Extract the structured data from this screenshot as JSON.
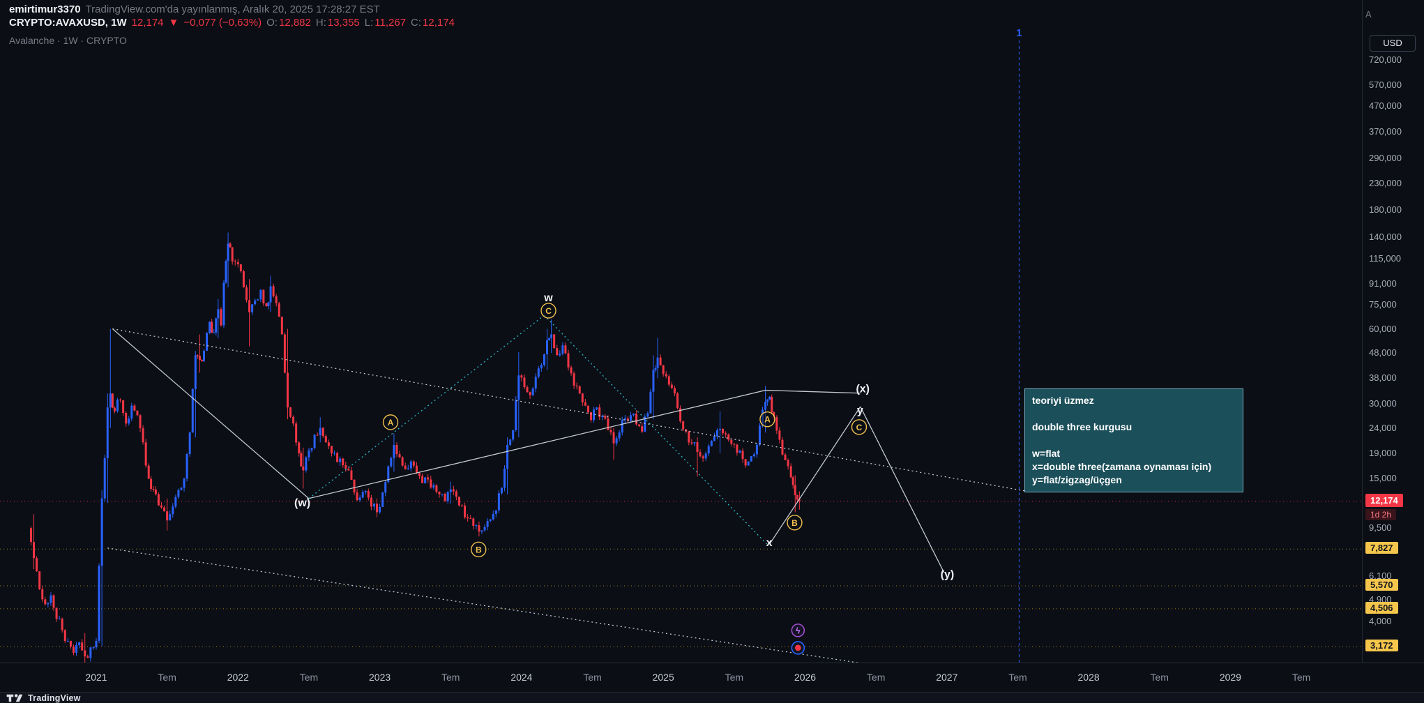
{
  "header": {
    "author": "emirtimur3370",
    "published": "TradingView.com'da yayınlanmış, Aralık 20, 2025 17:28:27 EST",
    "symbol_interval": "CRYPTO:AVAXUSD, 1W",
    "last_price": "12,174",
    "direction": "▼",
    "change": "−0,077 (−0,63%)",
    "o_label": "O:",
    "o_value": "12,882",
    "h_label": "H:",
    "h_value": "13,355",
    "l_label": "L:",
    "l_value": "11,267",
    "c_label": "C:",
    "c_value": "12,174"
  },
  "watermark": "Avalanche · 1W · CRYPTO",
  "price_axis": {
    "currency_button": "USD",
    "auto_button": "A",
    "ticks": [
      {
        "label": "720,000",
        "value": 720
      },
      {
        "label": "570,000",
        "value": 570
      },
      {
        "label": "470,000",
        "value": 470
      },
      {
        "label": "370,000",
        "value": 370
      },
      {
        "label": "290,000",
        "value": 290
      },
      {
        "label": "230,000",
        "value": 230
      },
      {
        "label": "180,000",
        "value": 180
      },
      {
        "label": "140,000",
        "value": 140
      },
      {
        "label": "115,000",
        "value": 115
      },
      {
        "label": "91,000",
        "value": 91
      },
      {
        "label": "75,000",
        "value": 75
      },
      {
        "label": "60,000",
        "value": 60
      },
      {
        "label": "48,000",
        "value": 48
      },
      {
        "label": "38,000",
        "value": 38
      },
      {
        "label": "30,000",
        "value": 30
      },
      {
        "label": "24,000",
        "value": 24
      },
      {
        "label": "19,000",
        "value": 19
      },
      {
        "label": "15,000",
        "value": 15
      },
      {
        "label": "9,500",
        "value": 9.5
      },
      {
        "label": "6,100",
        "value": 6.1
      },
      {
        "label": "4,900",
        "value": 4.9
      },
      {
        "label": "4,000",
        "value": 4
      }
    ],
    "current": {
      "label": "12,174",
      "value": 12.174,
      "countdown": "1d 2h"
    },
    "alerts": [
      {
        "label": "7,827",
        "value": 7.827
      },
      {
        "label": "5,570",
        "value": 5.57
      },
      {
        "label": "4,506",
        "value": 4.506
      },
      {
        "label": "3,172",
        "value": 3.172
      }
    ]
  },
  "time_axis": [
    {
      "label": "2021",
      "t": 2021,
      "type": "year"
    },
    {
      "label": "Tem",
      "t": 2021.5,
      "type": "month"
    },
    {
      "label": "2022",
      "t": 2022,
      "type": "year"
    },
    {
      "label": "Tem",
      "t": 2022.5,
      "type": "month"
    },
    {
      "label": "2023",
      "t": 2023,
      "type": "year"
    },
    {
      "label": "Tem",
      "t": 2023.5,
      "type": "month"
    },
    {
      "label": "2024",
      "t": 2024,
      "type": "year"
    },
    {
      "label": "Tem",
      "t": 2024.5,
      "type": "month"
    },
    {
      "label": "2025",
      "t": 2025,
      "type": "year"
    },
    {
      "label": "Tem",
      "t": 2025.5,
      "type": "month"
    },
    {
      "label": "2026",
      "t": 2026,
      "type": "year"
    },
    {
      "label": "Tem",
      "t": 2026.5,
      "type": "month"
    },
    {
      "label": "2027",
      "t": 2027,
      "type": "year"
    },
    {
      "label": "Tem",
      "t": 2027.5,
      "type": "month"
    },
    {
      "label": "2028",
      "t": 2028,
      "type": "year"
    },
    {
      "label": "Tem",
      "t": 2028.5,
      "type": "month"
    },
    {
      "label": "2029",
      "t": 2029,
      "type": "year"
    },
    {
      "label": "Tem",
      "t": 2029.5,
      "type": "month"
    }
  ],
  "chart_data": {
    "type": "candlestick",
    "symbol": "CRYPTO:AVAXUSD",
    "title": "Avalanche",
    "interval": "1W",
    "unit": "USD",
    "scale": "log",
    "x_range": [
      2020.5,
      2029.6
    ],
    "visible_price_range": [
      2.3,
      900
    ],
    "up_color": "#2962ff",
    "down_color": "#f23645",
    "last_bar": {
      "open": 12.882,
      "high": 13.355,
      "low": 11.267,
      "close": 12.174,
      "change": -0.077,
      "change_pct": -0.63
    },
    "weekly_close_anchors": [
      [
        2020.52,
        9.5
      ],
      [
        2020.56,
        7.2,
        10.8,
        6.5
      ],
      [
        2020.6,
        5.4
      ],
      [
        2020.64,
        4.7
      ],
      [
        2020.68,
        5.1
      ],
      [
        2020.72,
        4.1
      ],
      [
        2020.76,
        3.7
      ],
      [
        2020.8,
        3.35
      ],
      [
        2020.84,
        3.0
      ],
      [
        2020.88,
        3.3
      ],
      [
        2020.92,
        2.9,
        3.6,
        2.55
      ],
      [
        2020.96,
        3.15
      ],
      [
        2021.0,
        3.35
      ],
      [
        2021.04,
        12.5,
        13.5,
        3.2
      ],
      [
        2021.08,
        29,
        33,
        12
      ],
      [
        2021.1,
        33,
        59.9,
        24
      ],
      [
        2021.13,
        28
      ],
      [
        2021.17,
        31
      ],
      [
        2021.21,
        25
      ],
      [
        2021.25,
        29.5
      ],
      [
        2021.29,
        27
      ],
      [
        2021.33,
        21
      ],
      [
        2021.37,
        15
      ],
      [
        2021.42,
        13
      ],
      [
        2021.46,
        11.5
      ],
      [
        2021.5,
        10.2,
        12.5,
        9.3
      ],
      [
        2021.54,
        11.6
      ],
      [
        2021.58,
        13.5
      ],
      [
        2021.62,
        15
      ],
      [
        2021.66,
        23
      ],
      [
        2021.7,
        47,
        49,
        22
      ],
      [
        2021.73,
        45,
        57,
        40
      ],
      [
        2021.76,
        49
      ],
      [
        2021.8,
        64
      ],
      [
        2021.83,
        58
      ],
      [
        2021.86,
        72,
        79,
        55
      ],
      [
        2021.88,
        62
      ],
      [
        2021.9,
        92
      ],
      [
        2021.93,
        132,
        146.2,
        88
      ],
      [
        2021.96,
        112
      ],
      [
        2022.0,
        109
      ],
      [
        2022.04,
        88
      ],
      [
        2022.08,
        70,
        95,
        51
      ],
      [
        2022.12,
        78
      ],
      [
        2022.16,
        86
      ],
      [
        2022.2,
        74
      ],
      [
        2022.23,
        89,
        98,
        70
      ],
      [
        2022.27,
        76
      ],
      [
        2022.31,
        57
      ],
      [
        2022.35,
        29,
        60,
        26
      ],
      [
        2022.39,
        25
      ],
      [
        2022.43,
        19
      ],
      [
        2022.46,
        16.2,
        20,
        13.7
      ],
      [
        2022.5,
        19.5
      ],
      [
        2022.54,
        22.5
      ],
      [
        2022.58,
        24,
        26.5,
        21
      ],
      [
        2022.62,
        21
      ],
      [
        2022.66,
        19
      ],
      [
        2022.7,
        17.5
      ],
      [
        2022.74,
        17
      ],
      [
        2022.78,
        16.2
      ],
      [
        2022.82,
        13.2
      ],
      [
        2022.86,
        12.6
      ],
      [
        2022.9,
        13.4
      ],
      [
        2022.94,
        11.6
      ],
      [
        2022.98,
        11.0,
        12.5,
        10.5
      ],
      [
        2023.02,
        13.2
      ],
      [
        2023.06,
        16.8
      ],
      [
        2023.1,
        20.5,
        22.8,
        16
      ],
      [
        2023.14,
        18.3
      ],
      [
        2023.18,
        16.4
      ],
      [
        2023.22,
        17.6
      ],
      [
        2023.26,
        15.8
      ],
      [
        2023.3,
        14.4
      ],
      [
        2023.34,
        14.9
      ],
      [
        2023.38,
        14.1
      ],
      [
        2023.42,
        13.0
      ],
      [
        2023.46,
        12.2
      ],
      [
        2023.5,
        13.6,
        14.6,
        11.9
      ],
      [
        2023.54,
        12.7
      ],
      [
        2023.58,
        11.7
      ],
      [
        2023.62,
        10.4
      ],
      [
        2023.66,
        9.7
      ],
      [
        2023.7,
        9.2,
        10.1,
        8.8
      ],
      [
        2023.74,
        9.6
      ],
      [
        2023.78,
        10.3
      ],
      [
        2023.82,
        11.2
      ],
      [
        2023.86,
        13.8
      ],
      [
        2023.9,
        20.5,
        22,
        13
      ],
      [
        2023.94,
        23.5
      ],
      [
        2023.98,
        39,
        48.3,
        22
      ],
      [
        2024.02,
        35
      ],
      [
        2024.06,
        32.5
      ],
      [
        2024.1,
        38.5
      ],
      [
        2024.14,
        43
      ],
      [
        2024.18,
        54,
        60,
        41
      ],
      [
        2024.21,
        57,
        65.4,
        48
      ],
      [
        2024.25,
        47
      ],
      [
        2024.29,
        51.5
      ],
      [
        2024.33,
        42
      ],
      [
        2024.37,
        35.5
      ],
      [
        2024.41,
        33
      ],
      [
        2024.45,
        29.5
      ],
      [
        2024.49,
        25.8
      ],
      [
        2024.53,
        29
      ],
      [
        2024.57,
        26.8
      ],
      [
        2024.61,
        23.5
      ],
      [
        2024.65,
        20.8,
        24,
        17.9
      ],
      [
        2024.69,
        23
      ],
      [
        2024.73,
        26.2
      ],
      [
        2024.77,
        27
      ],
      [
        2024.81,
        24.8
      ],
      [
        2024.85,
        23.2
      ],
      [
        2024.89,
        27.5
      ],
      [
        2024.93,
        41,
        47,
        26
      ],
      [
        2024.96,
        46,
        55.2,
        38
      ],
      [
        2025.0,
        39.5
      ],
      [
        2025.04,
        35.8
      ],
      [
        2025.08,
        33
      ],
      [
        2025.12,
        25.5
      ],
      [
        2025.16,
        23.2
      ],
      [
        2025.2,
        20.8
      ],
      [
        2025.24,
        19.2,
        22,
        15.3
      ],
      [
        2025.28,
        18.1
      ],
      [
        2025.32,
        20.3
      ],
      [
        2025.36,
        22.2
      ],
      [
        2025.4,
        23.8,
        28,
        19
      ],
      [
        2025.44,
        22.6
      ],
      [
        2025.48,
        20.7
      ],
      [
        2025.52,
        19.1
      ],
      [
        2025.56,
        18.0
      ],
      [
        2025.6,
        17.6
      ],
      [
        2025.64,
        18.8
      ],
      [
        2025.68,
        24.5
      ],
      [
        2025.72,
        30.5,
        35.4,
        23
      ],
      [
        2025.75,
        32
      ],
      [
        2025.78,
        26.5
      ],
      [
        2025.82,
        21.5
      ],
      [
        2025.86,
        17.8
      ],
      [
        2025.9,
        15.2
      ],
      [
        2025.93,
        12.88,
        15.5,
        11.0
      ],
      [
        2025.96,
        12.174,
        13.355,
        11.267
      ]
    ]
  },
  "drawings": {
    "lines": [
      {
        "from": [
          2021.115,
          60
        ],
        "to": [
          2022.499,
          12.5
        ],
        "color": "white",
        "dash": "solid"
      },
      {
        "from": [
          2022.499,
          12.5
        ],
        "to": [
          2025.72,
          34
        ],
        "color": "white",
        "dash": "solid"
      },
      {
        "from": [
          2025.72,
          34
        ],
        "to": [
          2026.39,
          33.1
        ],
        "color": "white",
        "dash": "solid"
      },
      {
        "from": [
          2025.75,
          8.2
        ],
        "to": [
          2026.39,
          29.2
        ],
        "color": "white",
        "dash": "solid"
      },
      {
        "from": [
          2026.39,
          29.2
        ],
        "to": [
          2026.98,
          6.3
        ],
        "color": "white",
        "dash": "solid"
      },
      {
        "from": [
          2022.5,
          12.5
        ],
        "to": [
          2024.16,
          68
        ],
        "color": "cyan",
        "dash": "dotted"
      },
      {
        "from": [
          2024.16,
          68
        ],
        "to": [
          2025.73,
          8.2
        ],
        "color": "cyan",
        "dash": "dotted"
      },
      {
        "from": [
          2021.08,
          7.9
        ],
        "to": [
          2027.24,
          2.3
        ],
        "color": "white",
        "dash": "dotted"
      },
      {
        "from": [
          2021.115,
          60
        ],
        "to": [
          2027.55,
          13.4
        ],
        "color": "white",
        "dash": "dotted"
      }
    ],
    "vline": {
      "t": 2027.51,
      "label": "1",
      "color": "#2962ff"
    },
    "wave_labels": [
      {
        "text": "(w)",
        "t": 2022.454,
        "p": 12.0
      },
      {
        "text": "w",
        "t": 2024.19,
        "p": 80
      },
      {
        "text": "x",
        "t": 2025.747,
        "p": 8.3
      },
      {
        "text": "y",
        "t": 2026.388,
        "p": 28.2
      },
      {
        "text": "(x)",
        "t": 2026.407,
        "p": 34.5
      },
      {
        "text": "(y)",
        "t": 2027.003,
        "p": 6.2
      }
    ],
    "circled_labels": [
      {
        "text": "A",
        "t": 2023.076,
        "p": 25.3
      },
      {
        "text": "B",
        "t": 2023.697,
        "p": 7.8
      },
      {
        "text": "C",
        "t": 2024.19,
        "p": 71
      },
      {
        "text": "A",
        "t": 2025.734,
        "p": 26
      },
      {
        "text": "B",
        "t": 2025.926,
        "p": 10.0
      },
      {
        "text": "C",
        "t": 2026.381,
        "p": 24.2
      }
    ],
    "markers": [
      {
        "icon": "lightning-marker-icon",
        "t": 2025.95,
        "p": 3.69
      },
      {
        "icon": "siren-marker-icon",
        "t": 2025.95,
        "p": 3.14
      }
    ],
    "note": {
      "lines": [
        "teoriyi üzmez",
        "",
        "double three kurgusu",
        "",
        "w=flat",
        "x=double three(zamana oynaması için)",
        "y=flat/zigzag/üçgen"
      ]
    }
  },
  "footer": {
    "brand": "TradingView"
  }
}
